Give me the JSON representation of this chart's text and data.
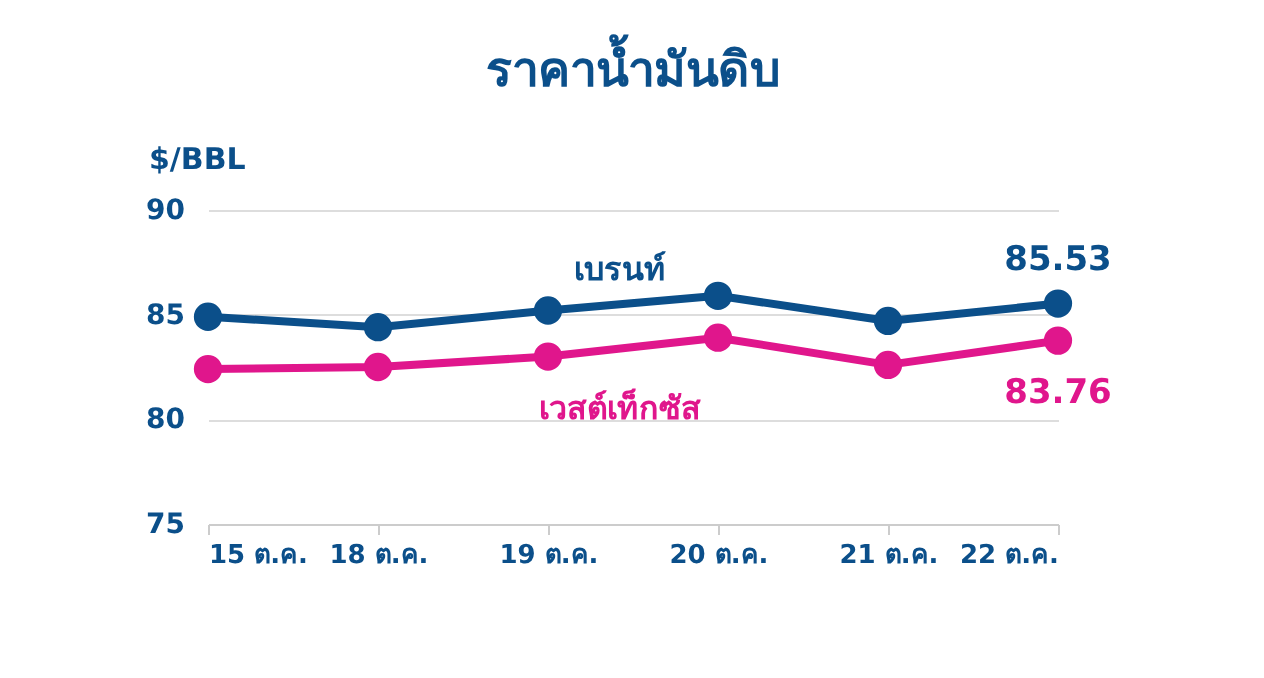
{
  "chart_data": {
    "type": "line",
    "title": "ราคาน้ำมันดิบ",
    "ylabel": "$/BBL",
    "categories": [
      "15 ต.ค.",
      "18 ต.ค.",
      "19 ต.ค.",
      "20 ต.ค.",
      "21 ต.ค.",
      "22 ต.ค."
    ],
    "series": [
      {
        "name": "เบรนท์",
        "color": "#0b4f8a",
        "values": [
          84.9,
          84.4,
          85.2,
          85.9,
          84.7,
          85.53
        ],
        "value_labels": [
          null,
          null,
          null,
          null,
          null,
          "85.53"
        ]
      },
      {
        "name": "เวสต์เท็กซัส",
        "color": "#e0168c",
        "values": [
          82.4,
          82.5,
          83.0,
          83.9,
          82.6,
          83.76
        ],
        "value_labels": [
          null,
          null,
          null,
          null,
          null,
          "83.76"
        ]
      }
    ],
    "ylim": [
      75,
      90
    ],
    "yticks": [
      75,
      80,
      85,
      90
    ],
    "grid": "y",
    "marker": "circle",
    "line_style": "solid"
  }
}
